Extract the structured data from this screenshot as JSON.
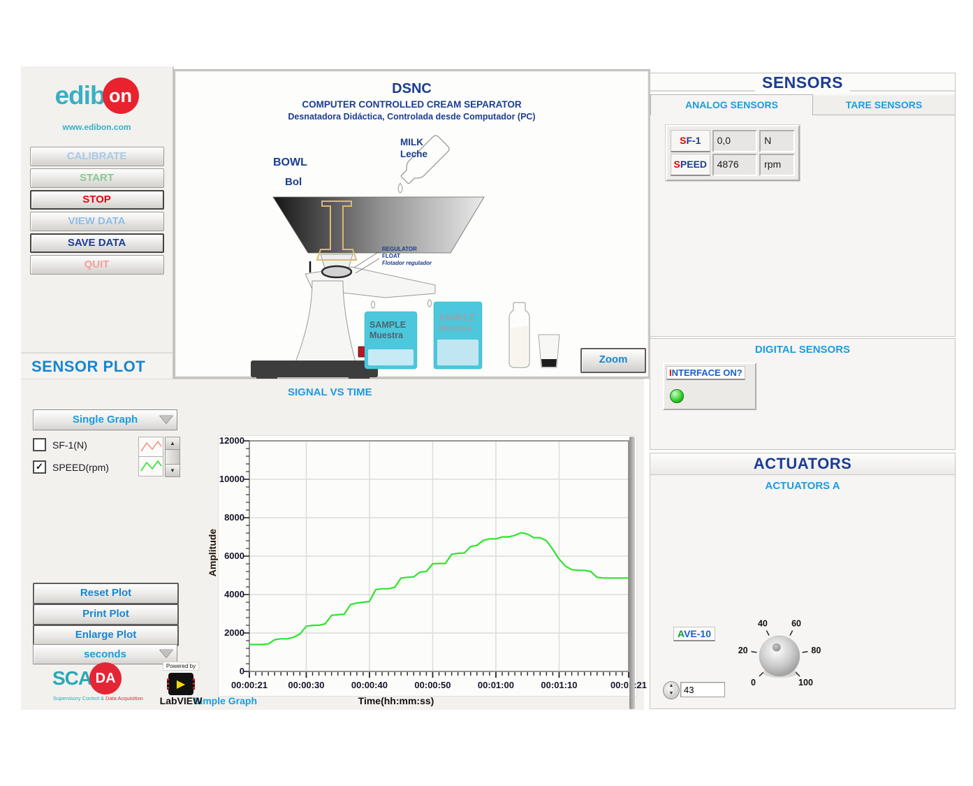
{
  "branding": {
    "logo_edib": "edib",
    "logo_on": "on",
    "website": "www.edibon.com",
    "scada_sca": "SCA",
    "scada_da": "DA",
    "scada_sub_teal": "Supervisory Control &",
    "scada_sub_red": " Data Acquisition",
    "powered_by": "Powered by",
    "labview": "LabVIEW"
  },
  "sidebar": {
    "buttons": [
      {
        "label": "CALIBRATE",
        "color": "#a9c9e6",
        "active": false
      },
      {
        "label": "START",
        "color": "#8bc793",
        "active": false
      },
      {
        "label": "STOP",
        "color": "#e60012",
        "active": true
      },
      {
        "label": "VIEW DATA",
        "color": "#8fbde9",
        "active": false
      },
      {
        "label": "SAVE DATA",
        "color": "#1b3d91",
        "active": true
      },
      {
        "label": "QUIT",
        "color": "#f59e9e",
        "active": false
      }
    ],
    "plot_header": "SENSOR PLOT"
  },
  "diagram": {
    "title": "DSNC",
    "subtitle_en": "COMPUTER CONTROLLED CREAM SEPARATOR",
    "subtitle_es": "Desnatadora Didáctica, Controlada desde Computador (PC)",
    "bowl_en": "BOWL",
    "bowl_es": "Bol",
    "milk_en": "MILK",
    "milk_es": "Leche",
    "regulator_line1": "REGULATOR",
    "regulator_line2": "FLOAT",
    "regulator_line3": "Flotador regulador",
    "sample_en": "SAMPLE",
    "sample_es": "Muestra",
    "zoom_button": "Zoom"
  },
  "sensors": {
    "title": "SENSORS",
    "tabs": [
      {
        "label": "ANALOG SENSORS",
        "active": true
      },
      {
        "label": "TARE SENSORS",
        "active": false
      }
    ],
    "analog": [
      {
        "name_first": "S",
        "name_rest": "F-1",
        "value": "0,0",
        "unit": "N"
      },
      {
        "name_first": "S",
        "name_rest": "PEED",
        "value": "4876",
        "unit": "rpm"
      }
    ],
    "digital_header": "DIGITAL SENSORS",
    "interface_label_first": "I",
    "interface_label_rest": "NTERFACE ON?",
    "led_color": "#2ecc28"
  },
  "actuators": {
    "title": "ACTUATORS",
    "subtitle": "ACTUATORS A",
    "ave_label_first": "A",
    "ave_label_rest": "VE-10",
    "value": "43",
    "knob": {
      "min": 0,
      "max": 100,
      "value": 43,
      "ticks": [
        "0",
        "20",
        "40",
        "60",
        "80",
        "100"
      ]
    }
  },
  "sensor_plot": {
    "chart_title": "SIGNAL VS TIME",
    "graph_mode": "Single Graph",
    "series_toggles": [
      {
        "label": "SF-1(N)",
        "checked": false,
        "color": "#f4948a"
      },
      {
        "label": "SPEED(rpm)",
        "checked": true,
        "color": "#2de52d"
      }
    ],
    "buttons": [
      "Reset Plot",
      "Print Plot",
      "Enlarge Plot"
    ],
    "time_unit": "seconds",
    "bottom_left_label": "Simple Graph",
    "x_axis_label": "Time(hh:mm:ss)",
    "y_axis_label": "Amplitude"
  },
  "chart_data": {
    "type": "line",
    "title": "SIGNAL VS TIME",
    "xlabel": "Time(hh:mm:ss)",
    "ylabel": "Amplitude",
    "ylim": [
      0,
      12000
    ],
    "xlim_seconds": [
      21,
      81
    ],
    "grid": true,
    "legend_position": "left-checkboxes",
    "y_ticks": [
      0,
      2000,
      4000,
      6000,
      8000,
      10000,
      12000
    ],
    "x_tick_seconds": [
      21,
      30,
      40,
      50,
      60,
      70,
      81
    ],
    "x_tick_labels": [
      "00:00:21",
      "00:00:30",
      "00:00:40",
      "00:00:50",
      "00:01:00",
      "00:01:10",
      "00:01:21"
    ],
    "series": [
      {
        "name": "SPEED(rpm)",
        "color": "#2de52d",
        "visible": true,
        "x": [
          21,
          22,
          23,
          24,
          25,
          26,
          27,
          28,
          29,
          30,
          31,
          32,
          33,
          34,
          35,
          36,
          37,
          38,
          39,
          40,
          41,
          42,
          43,
          44,
          45,
          46,
          47,
          48,
          49,
          50,
          51,
          52,
          53,
          54,
          55,
          56,
          57,
          58,
          59,
          60,
          61,
          62,
          63,
          64,
          65,
          66,
          67,
          68,
          69,
          70,
          71,
          72,
          73,
          74,
          75,
          76,
          77,
          78,
          79,
          80,
          81
        ],
        "y": [
          1400,
          1400,
          1400,
          1430,
          1650,
          1700,
          1700,
          1780,
          1950,
          2350,
          2400,
          2400,
          2480,
          2920,
          2950,
          2980,
          3480,
          3560,
          3600,
          3640,
          4260,
          4300,
          4300,
          4380,
          4860,
          4900,
          4920,
          5170,
          5200,
          5600,
          5620,
          5620,
          6100,
          6150,
          6160,
          6500,
          6560,
          6820,
          6900,
          6900,
          7000,
          7000,
          7080,
          7220,
          7150,
          6960,
          6960,
          6800,
          6350,
          5850,
          5480,
          5300,
          5260,
          5260,
          5200,
          4900,
          4860,
          4860,
          4860,
          4860,
          4860
        ]
      },
      {
        "name": "SF-1(N)",
        "color": "#f4948a",
        "visible": false,
        "x": [],
        "y": []
      }
    ]
  }
}
